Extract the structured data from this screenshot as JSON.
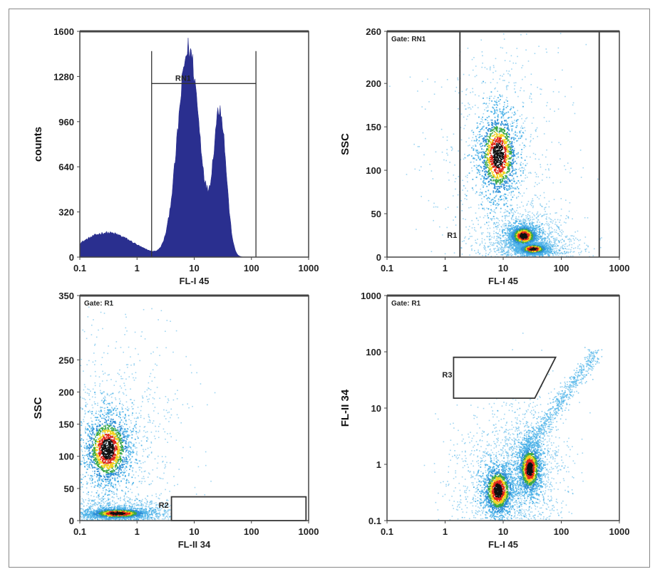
{
  "colors": {
    "histogram_fill": "#2a2f8f",
    "density_low": "#4fb3e8",
    "density_mid": "#2f8fd6",
    "density_green": "#3aa845",
    "density_yellow": "#f2d21b",
    "density_red": "#e0251b",
    "density_black": "#111111",
    "frame": "#444444"
  },
  "chart_data": [
    {
      "type": "area",
      "name": "histogram",
      "xlabel": "FL-I 45",
      "ylabel": "counts",
      "xscale": "log",
      "xlim": [
        0.1,
        1000
      ],
      "ylim": [
        0,
        1600
      ],
      "xticks": [
        "0.1",
        "1",
        "10",
        "100",
        "1000"
      ],
      "yticks": [
        "0",
        "320",
        "640",
        "960",
        "1280",
        "1600"
      ],
      "peaks": [
        {
          "x": 0.3,
          "y": 175,
          "width": 0.45
        },
        {
          "x": 8,
          "y": 1490,
          "width": 0.19
        },
        {
          "x": 28,
          "y": 1050,
          "width": 0.11
        }
      ],
      "region": {
        "label": "RN1",
        "x_range": [
          1.8,
          120
        ],
        "y": 1230
      }
    },
    {
      "type": "scatter",
      "name": "dotplot-ssc-vs-fl1",
      "gate_label": "Gate: RN1",
      "xlabel": "FL-I 45",
      "ylabel": "SSC",
      "xscale": "log",
      "xlim": [
        0.1,
        1000
      ],
      "ylim": [
        0,
        260
      ],
      "xticks": [
        "0.1",
        "1",
        "10",
        "100",
        "1000"
      ],
      "yticks": [
        "0",
        "50",
        "100",
        "150",
        "200",
        "260"
      ],
      "clusters": [
        {
          "x": 8,
          "y": 118,
          "sx": 0.17,
          "sy": 25
        },
        {
          "x": 22,
          "y": 25,
          "sx": 0.12,
          "sy": 6
        },
        {
          "x": 32,
          "y": 10,
          "sx": 0.12,
          "sy": 3
        }
      ],
      "region": {
        "label": "R1",
        "x_range": [
          1.8,
          450
        ]
      }
    },
    {
      "type": "scatter",
      "name": "dotplot-ssc-vs-fl2",
      "gate_label": "Gate: R1",
      "xlabel": "FL-II 34",
      "ylabel": "SSC",
      "xscale": "log",
      "xlim": [
        0.1,
        1000
      ],
      "ylim": [
        0,
        350
      ],
      "xticks": [
        "0.1",
        "1",
        "10",
        "100",
        "1000"
      ],
      "yticks": [
        "0",
        "50",
        "100",
        "150",
        "200",
        "250",
        "350"
      ],
      "clusters": [
        {
          "x": 0.3,
          "y": 112,
          "sx": 0.2,
          "sy": 28
        },
        {
          "x": 0.45,
          "y": 12,
          "sx": 0.25,
          "sy": 4
        }
      ],
      "region": {
        "label": "R2",
        "x_range": [
          4,
          900
        ],
        "y_range": [
          0,
          37
        ]
      }
    },
    {
      "type": "scatter",
      "name": "dotplot-fl2-vs-fl1",
      "gate_label": "Gate: R1",
      "xlabel": "FL-I 45",
      "ylabel": "FL-II 34",
      "xscale": "log",
      "yscale": "log",
      "xlim": [
        0.1,
        1000
      ],
      "ylim": [
        0.1,
        1000
      ],
      "xticks": [
        "0.1",
        "1",
        "10",
        "100",
        "1000"
      ],
      "yticks": [
        "0.1",
        "1",
        "10",
        "100",
        "1000"
      ],
      "clusters": [
        {
          "x": 8,
          "y": 0.35,
          "sx": 0.13,
          "sy": 0.22
        },
        {
          "x": 28,
          "y": 0.85,
          "sx": 0.1,
          "sy": 0.22
        }
      ],
      "diagonal": {
        "from": [
          20,
          1.5
        ],
        "to": [
          400,
          100
        ]
      },
      "region": {
        "label": "R3",
        "polygon": [
          [
            1.4,
            80
          ],
          [
            80,
            80
          ],
          [
            35,
            15
          ],
          [
            1.4,
            15
          ]
        ]
      }
    }
  ]
}
